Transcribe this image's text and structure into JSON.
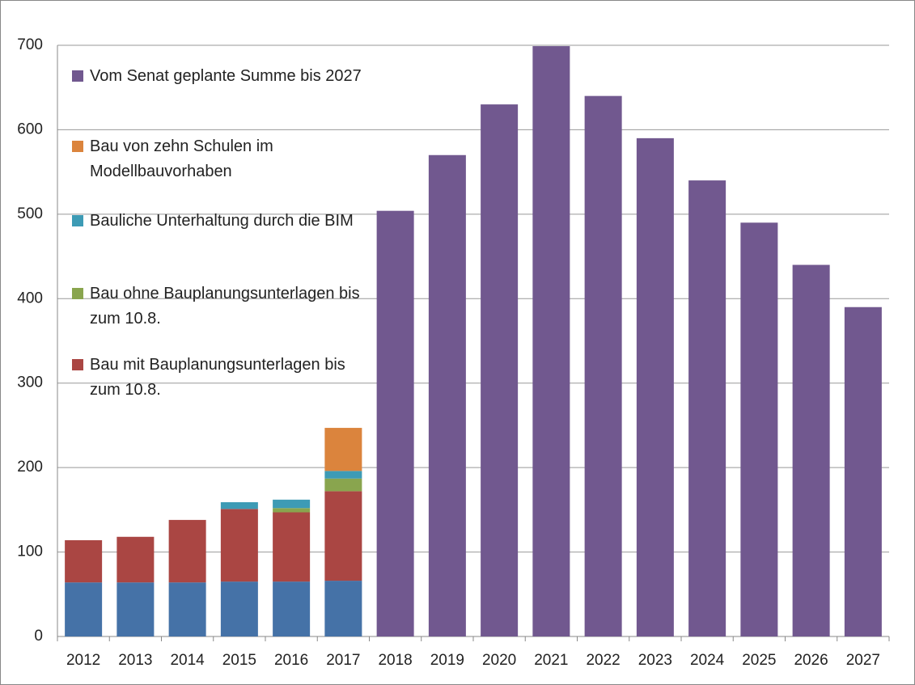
{
  "chart_data": {
    "type": "bar",
    "stacked": true,
    "categories": [
      "2012",
      "2013",
      "2014",
      "2015",
      "2016",
      "2017",
      "2018",
      "2019",
      "2020",
      "2021",
      "2022",
      "2023",
      "2024",
      "2025",
      "2026",
      "2027"
    ],
    "series": [
      {
        "name": null,
        "color": "#4572a7",
        "values": [
          64,
          64,
          64,
          65,
          65,
          66,
          null,
          null,
          null,
          null,
          null,
          null,
          null,
          null,
          null,
          null
        ]
      },
      {
        "name": "Bau mit Bauplanungsunterlagen bis zum 10.8.",
        "color": "#aa4643",
        "values": [
          50,
          54,
          74,
          86,
          82,
          106,
          null,
          null,
          null,
          null,
          null,
          null,
          null,
          null,
          null,
          null
        ]
      },
      {
        "name": "Bau ohne Bauplanungsunterlagen bis zum 10.8.",
        "color": "#89a54e",
        "values": [
          null,
          null,
          null,
          null,
          5,
          15,
          null,
          null,
          null,
          null,
          null,
          null,
          null,
          null,
          null,
          null
        ]
      },
      {
        "name": "Bauliche Unterhaltung durch die BIM",
        "color": "#3d9bb5",
        "values": [
          null,
          null,
          null,
          8,
          10,
          9,
          null,
          null,
          null,
          null,
          null,
          null,
          null,
          null,
          null,
          null
        ]
      },
      {
        "name": "Bau von zehn Schulen im Modellbauvorhaben",
        "color": "#db843d",
        "values": [
          null,
          null,
          null,
          null,
          null,
          51,
          null,
          null,
          null,
          null,
          null,
          null,
          null,
          null,
          null,
          null
        ]
      },
      {
        "name": "Vom Senat geplante Summe bis 2027",
        "color": "#71588f",
        "values": [
          null,
          null,
          null,
          null,
          null,
          null,
          504,
          570,
          630,
          699,
          640,
          590,
          540,
          490,
          440,
          390
        ]
      }
    ],
    "ylim": [
      0,
      700
    ],
    "yticks": [
      0,
      100,
      200,
      300,
      400,
      500,
      600,
      700
    ],
    "grid": true
  }
}
